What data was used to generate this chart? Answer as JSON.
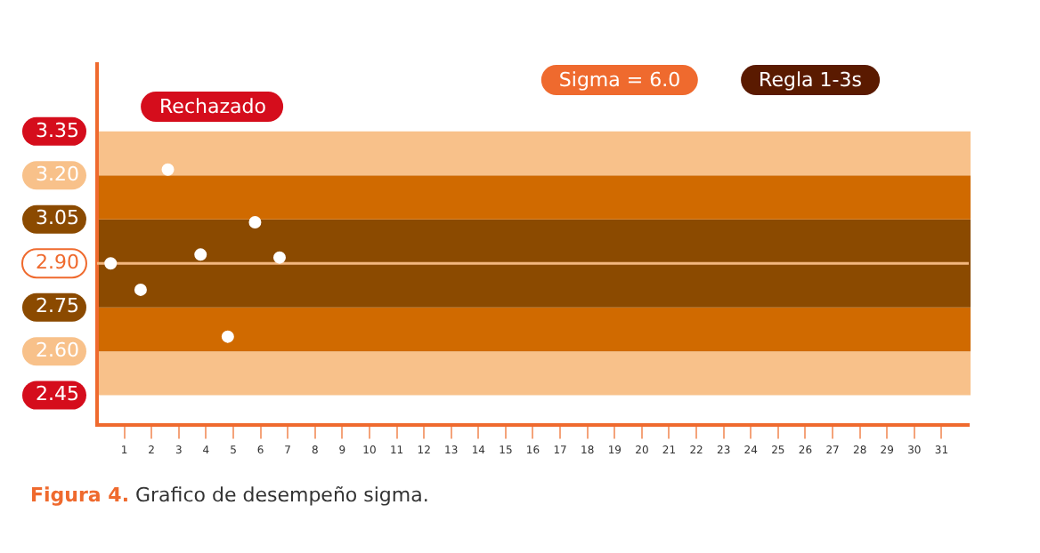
{
  "chart_data": {
    "type": "scatter",
    "x": [
      0.5,
      1.6,
      2.6,
      3.8,
      4.8,
      5.8,
      6.7
    ],
    "values": [
      2.9,
      2.81,
      3.22,
      2.93,
      2.65,
      3.04,
      2.92
    ],
    "color": "#ffffff",
    "marker": "circle",
    "xlim": [
      0,
      32
    ],
    "xticks": [
      1,
      2,
      3,
      4,
      5,
      6,
      7,
      8,
      9,
      10,
      11,
      12,
      13,
      14,
      15,
      16,
      17,
      18,
      19,
      20,
      21,
      22,
      23,
      24,
      25,
      26,
      27,
      28,
      29,
      30,
      31
    ],
    "ylim": [
      2.35,
      3.58
    ],
    "yticks": [
      2.45,
      {
        "value": 2.6,
        "label": "2.60"
      },
      2.75,
      {
        "value": 2.9,
        "label": "2.90"
      },
      3.05,
      {
        "value": 3.2,
        "label": "3.20"
      },
      3.35
    ],
    "grid": false,
    "legend": false,
    "bands": [
      {
        "axis": "y",
        "from": 2.45,
        "to": 2.6,
        "color": "#f8c18a"
      },
      {
        "axis": "y",
        "from": 2.6,
        "to": 2.75,
        "color": "#d06a00"
      },
      {
        "axis": "y",
        "from": 2.75,
        "to": 3.05,
        "color": "#8b4a00"
      },
      {
        "axis": "y",
        "from": 3.05,
        "to": 3.2,
        "color": "#d06a00"
      },
      {
        "axis": "y",
        "from": 3.2,
        "to": 3.35,
        "color": "#f8c18a"
      }
    ],
    "ref_lines": [
      {
        "axis": "y",
        "value": 2.9,
        "color": "#f3b77f"
      }
    ],
    "annotations": [
      "Rechazado",
      "Sigma = 6.0",
      "Regla 1-3s",
      "Figura 4. Grafico de desempeño sigma."
    ]
  }
}
